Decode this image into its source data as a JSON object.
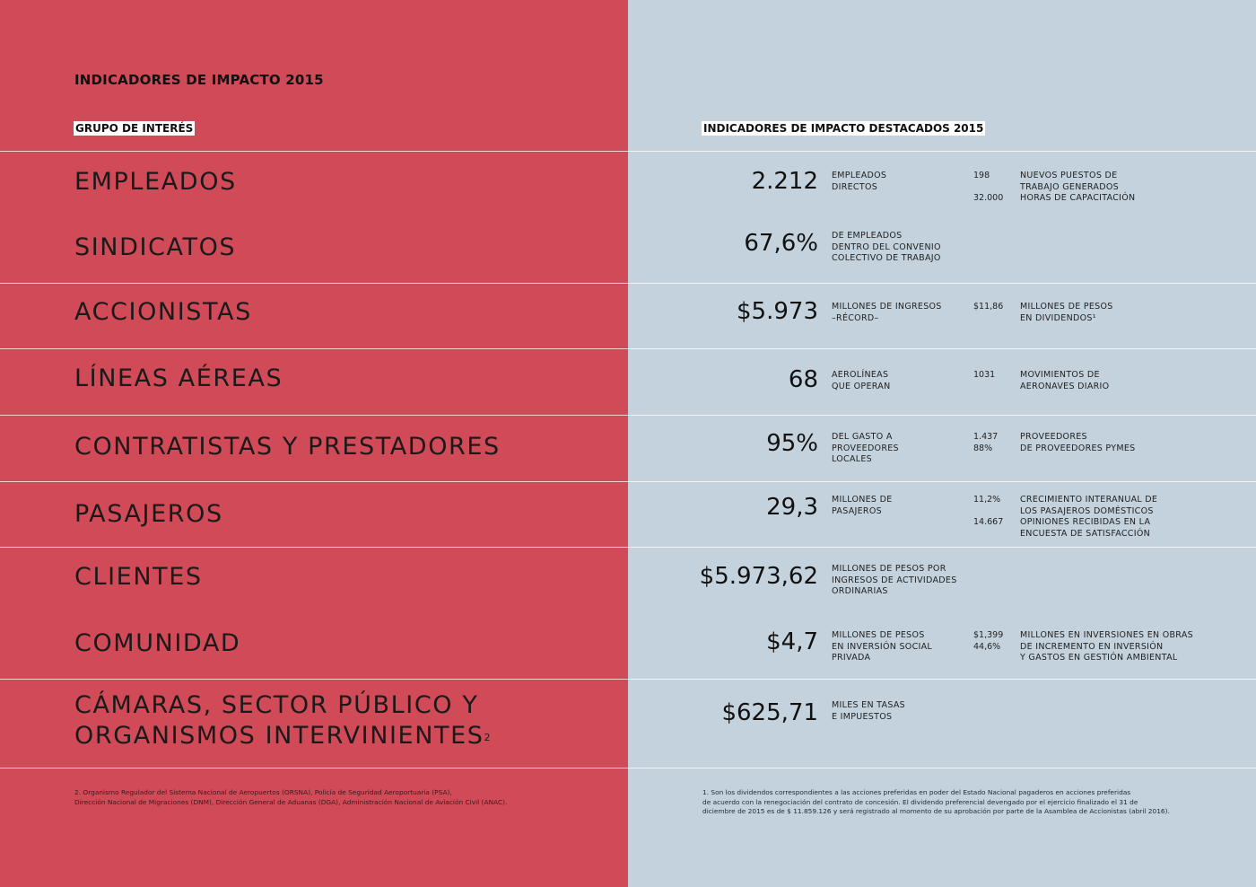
{
  "header": {
    "title": "INDICADORES DE IMPACTO 2015",
    "left_column": "GRUPO DE INTERÉS",
    "right_column": "INDICADORES DE IMPACTO DESTACADOS 2015"
  },
  "rows": [
    {
      "group": "EMPLEADOS",
      "value": "2.212",
      "desc": "EMPLEADOS\nDIRECTOS",
      "sub_values": "198\n\n32.000",
      "sub_desc": "NUEVOS PUESTOS DE\nTRABAJO GENERADOS\nHORAS DE CAPACITACIÓN"
    },
    {
      "group": "SINDICATOS",
      "value": "67,6%",
      "desc": "DE EMPLEADOS\nDENTRO DEL CONVENIO\nCOLECTIVO DE TRABAJO",
      "sub_values": "",
      "sub_desc": ""
    },
    {
      "group": "ACCIONISTAS",
      "value": "$5.973",
      "desc": "MILLONES DE INGRESOS\n–RÉCORD–",
      "sub_values": "$11,86",
      "sub_desc": "MILLONES DE PESOS\nEN DIVIDENDOS¹"
    },
    {
      "group": "LÍNEAS AÉREAS",
      "value": "68",
      "desc": "AEROLÍNEAS\nQUE OPERAN",
      "sub_values": "1031",
      "sub_desc": "MOVIMIENTOS DE\nAERONAVES DIARIO"
    },
    {
      "group": "CONTRATISTAS Y PRESTADORES",
      "value": "95%",
      "desc": "DEL GASTO A\nPROVEEDORES\nLOCALES",
      "sub_values": "1.437\n88%",
      "sub_desc": "PROVEEDORES\nDE PROVEEDORES PYMES"
    },
    {
      "group": "PASAJEROS",
      "value": "29,3",
      "desc": "MILLONES DE\nPASAJEROS",
      "sub_values": "11,2%\n\n14.667",
      "sub_desc": "CRECIMIENTO INTERANUAL DE\nLOS PASAJEROS DOMÉSTICOS\nOPINIONES RECIBIDAS EN LA\nENCUESTA DE SATISFACCIÓN"
    },
    {
      "group": "CLIENTES",
      "value": "$5.973,62",
      "desc": "MILLONES DE PESOS POR\nINGRESOS DE ACTIVIDADES\nORDINARIAS",
      "sub_values": "",
      "sub_desc": ""
    },
    {
      "group": "COMUNIDAD",
      "value": "$4,7",
      "desc": "MILLONES DE PESOS\nEN INVERSIÓN SOCIAL\nPRIVADA",
      "sub_values": "$1,399\n44,6%",
      "sub_desc": "MILLONES EN INVERSIONES EN OBRAS\nDE INCREMENTO EN INVERSIÓN\nY GASTOS EN GESTIÓN AMBIENTAL"
    },
    {
      "group_line1": "CÁMARAS, SECTOR PÚBLICO Y",
      "group_line2": "ORGANISMOS INTERVINIENTES",
      "group_sup": "2",
      "value": "$625,71",
      "desc": "MILES EN TASAS\nE IMPUESTOS",
      "sub_values": "",
      "sub_desc": ""
    }
  ],
  "footnotes": {
    "left": "2. Organismo Regulador del Sistema Nacional de Aeropuertos (ORSNA), Policía de Seguridad Aeroportuaria (PSA),\n    Dirección Nacional de Migraciones (DNM), Dirección General de Aduanas (DGA), Administración Nacional de Aviación Civil (ANAC).",
    "right": "1. Son los dividendos correspondientes a las acciones preferidas en poder del Estado Nacional pagaderos en acciones preferidas\n    de acuerdo con la renegociación del contrato de concesión. El dividendo preferencial devengado por el ejercicio finalizado el 31 de\n    diciembre de 2015 es de $ 11.859.126 y será registrado al momento de su aprobación por parte de la Asamblea de Accionistas (abril 2016)."
  },
  "colors": {
    "left_bg": "#d04a57",
    "right_bg": "#c3d2dc"
  }
}
